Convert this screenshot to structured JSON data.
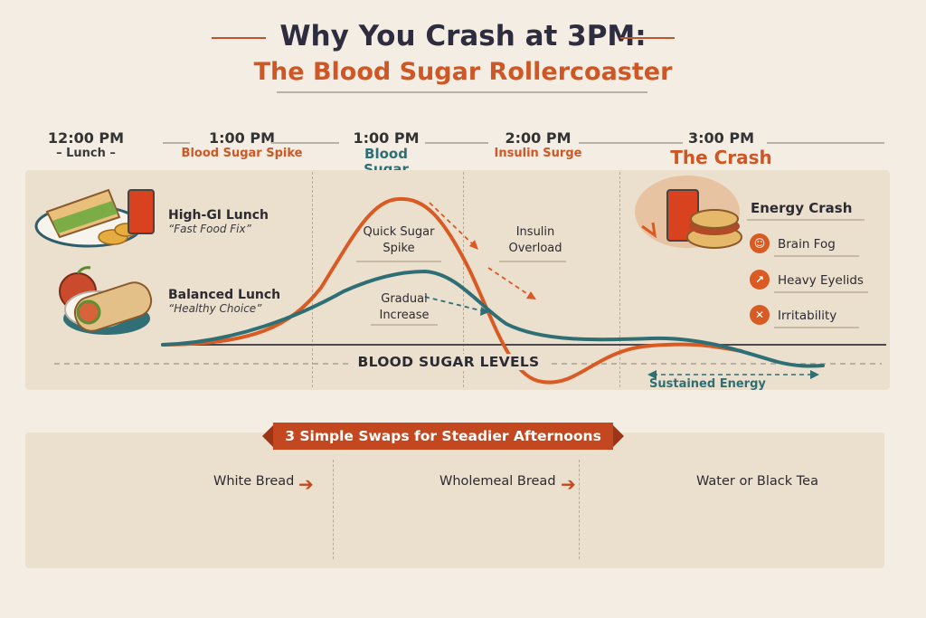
{
  "title": {
    "line1": "Why You Crash at 3PM:",
    "line2": "The Blood Sugar Rollercoaster"
  },
  "timeline": [
    {
      "time": "12:00 PM",
      "label": "– Lunch –"
    },
    {
      "time": "1:00 PM",
      "label": "Blood Sugar Spike"
    },
    {
      "time": "1:00 PM",
      "label": "Blood Sugar Spike"
    },
    {
      "time": "2:00 PM",
      "label": "Insulin Surge"
    },
    {
      "time": "3:00 PM",
      "label": "The Crash"
    }
  ],
  "lunches": [
    {
      "title": "High-GI Lunch",
      "subtitle": "“Fast Food Fix”"
    },
    {
      "title": "Balanced Lunch",
      "subtitle": "“Healthy Choice”"
    }
  ],
  "curve_labels": {
    "quick_spike": "Quick Sugar Spike",
    "insulin_overload": "Insulin Overload",
    "gradual_increase": "Gradual Increase",
    "blood_sugar_levels": "BLOOD SUGAR LEVELS",
    "sustained_energy": "Sustained Energy"
  },
  "crash": {
    "title": "Energy Crash",
    "items": [
      "Brain Fog",
      "Heavy Eyelids",
      "Irritability"
    ]
  },
  "swaps": {
    "banner": "3 Simple Swaps for Steadier Afternoons",
    "items": [
      "White Bread",
      "Wholemeal Bread",
      "Water or Black Tea"
    ]
  },
  "colors": {
    "orange": "#d95a22",
    "teal": "#2e6f75",
    "banner": "#c4481f"
  }
}
